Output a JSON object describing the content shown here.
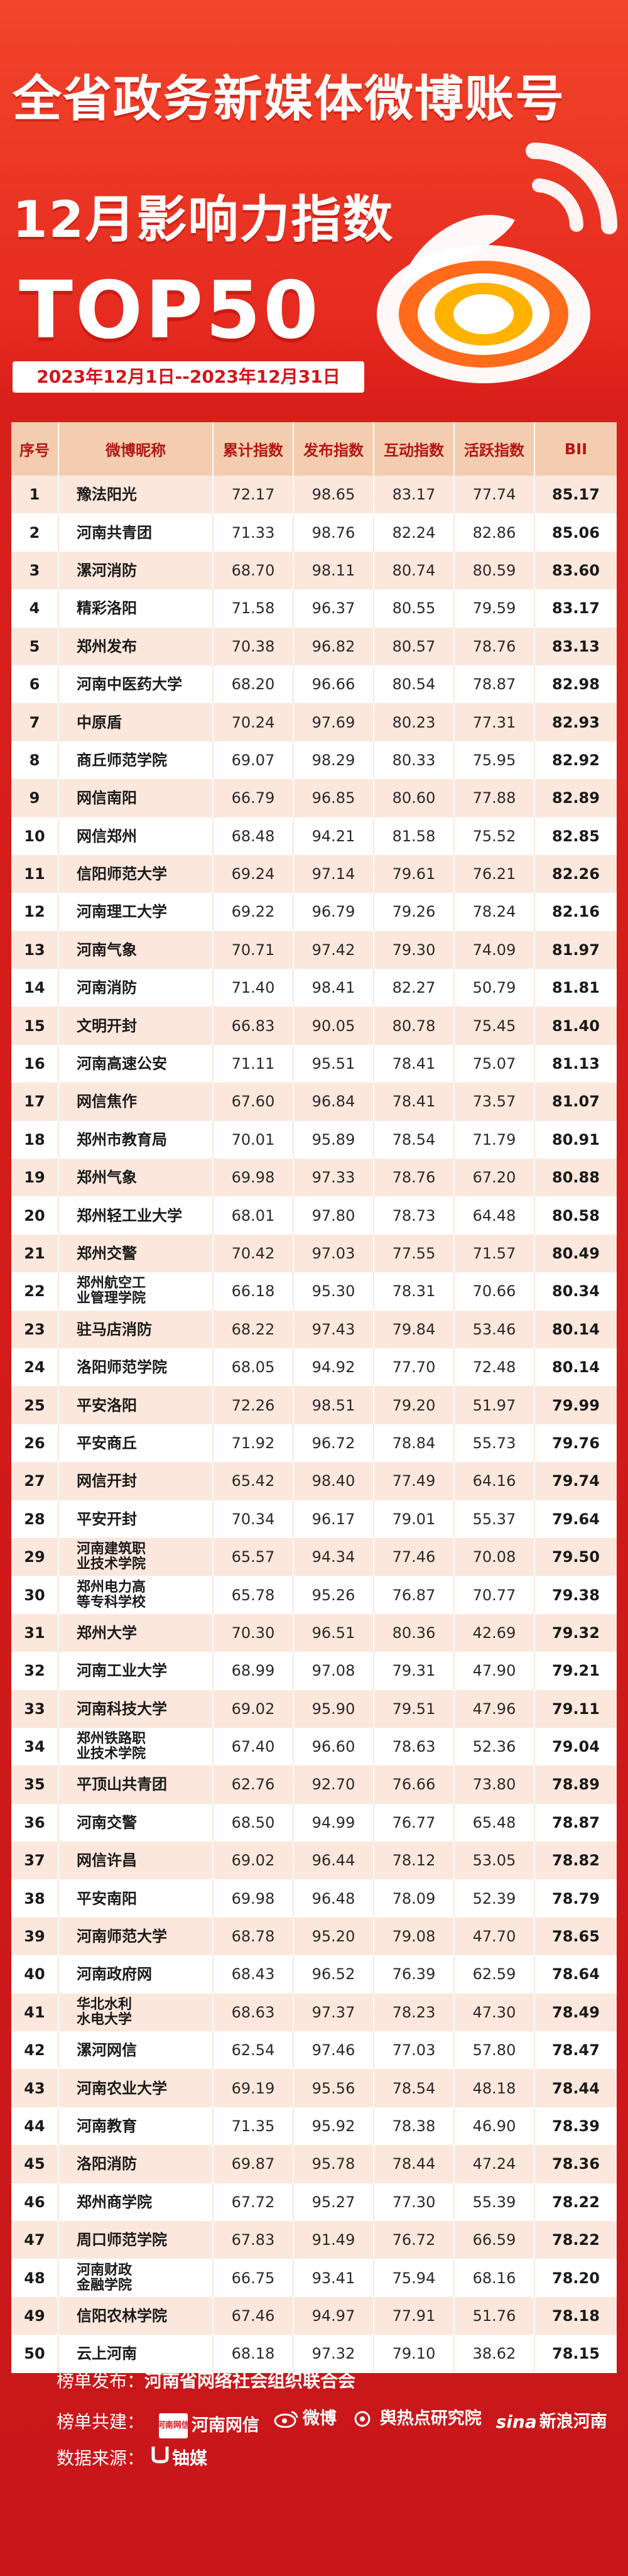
{
  "header": {
    "title_line1": "全省政务新媒体微博账号",
    "title_line2": "12月影响力指数",
    "title_line3": "TOP50",
    "date_range": "2023年12月1日--2023年12月31日"
  },
  "table": {
    "columns": [
      "序号",
      "微博昵称",
      "累计指数",
      "发布指数",
      "互动指数",
      "活跃指数",
      "BII"
    ],
    "rows": [
      [
        "1",
        "豫法阳光",
        "72.17",
        "98.65",
        "83.17",
        "77.74",
        "85.17"
      ],
      [
        "2",
        "河南共青团",
        "71.33",
        "98.76",
        "82.24",
        "82.86",
        "85.06"
      ],
      [
        "3",
        "漯河消防",
        "68.70",
        "98.11",
        "80.74",
        "80.59",
        "83.60"
      ],
      [
        "4",
        "精彩洛阳",
        "71.58",
        "96.37",
        "80.55",
        "79.59",
        "83.17"
      ],
      [
        "5",
        "郑州发布",
        "70.38",
        "96.82",
        "80.57",
        "78.76",
        "83.13"
      ],
      [
        "6",
        "河南中医药大学",
        "68.20",
        "96.66",
        "80.54",
        "78.87",
        "82.98"
      ],
      [
        "7",
        "中原盾",
        "70.24",
        "97.69",
        "80.23",
        "77.31",
        "82.93"
      ],
      [
        "8",
        "商丘师范学院",
        "69.07",
        "98.29",
        "80.33",
        "75.95",
        "82.92"
      ],
      [
        "9",
        "网信南阳",
        "66.79",
        "96.85",
        "80.60",
        "77.88",
        "82.89"
      ],
      [
        "10",
        "网信郑州",
        "68.48",
        "94.21",
        "81.58",
        "75.52",
        "82.85"
      ],
      [
        "11",
        "信阳师范大学",
        "69.24",
        "97.14",
        "79.61",
        "76.21",
        "82.26"
      ],
      [
        "12",
        "河南理工大学",
        "69.22",
        "96.79",
        "79.26",
        "78.24",
        "82.16"
      ],
      [
        "13",
        "河南气象",
        "70.71",
        "97.42",
        "79.30",
        "74.09",
        "81.97"
      ],
      [
        "14",
        "河南消防",
        "71.40",
        "98.41",
        "82.27",
        "50.79",
        "81.81"
      ],
      [
        "15",
        "文明开封",
        "66.83",
        "90.05",
        "80.78",
        "75.45",
        "81.40"
      ],
      [
        "16",
        "河南高速公安",
        "71.11",
        "95.51",
        "78.41",
        "75.07",
        "81.13"
      ],
      [
        "17",
        "网信焦作",
        "67.60",
        "96.84",
        "78.41",
        "73.57",
        "81.07"
      ],
      [
        "18",
        "郑州市教育局",
        "70.01",
        "95.89",
        "78.54",
        "71.79",
        "80.91"
      ],
      [
        "19",
        "郑州气象",
        "69.98",
        "97.33",
        "78.76",
        "67.20",
        "80.88"
      ],
      [
        "20",
        "郑州轻工业大学",
        "68.01",
        "97.80",
        "78.73",
        "64.48",
        "80.58"
      ],
      [
        "21",
        "郑州交警",
        "70.42",
        "97.03",
        "77.55",
        "71.57",
        "80.49"
      ],
      [
        "22",
        "郑州航空工业管理学院",
        "66.18",
        "95.30",
        "78.31",
        "70.66",
        "80.34"
      ],
      [
        "23",
        "驻马店消防",
        "68.22",
        "97.43",
        "79.84",
        "53.46",
        "80.14"
      ],
      [
        "24",
        "洛阳师范学院",
        "68.05",
        "94.92",
        "77.70",
        "72.48",
        "80.14"
      ],
      [
        "25",
        "平安洛阳",
        "72.26",
        "98.51",
        "79.20",
        "51.97",
        "79.99"
      ],
      [
        "26",
        "平安商丘",
        "71.92",
        "96.72",
        "78.84",
        "55.73",
        "79.76"
      ],
      [
        "27",
        "网信开封",
        "65.42",
        "98.40",
        "77.49",
        "64.16",
        "79.74"
      ],
      [
        "28",
        "平安开封",
        "70.34",
        "96.17",
        "79.01",
        "55.37",
        "79.64"
      ],
      [
        "29",
        "河南建筑职业技术学院",
        "65.57",
        "94.34",
        "77.46",
        "70.08",
        "79.50"
      ],
      [
        "30",
        "郑州电力高等专科学校",
        "65.78",
        "95.26",
        "76.87",
        "70.77",
        "79.38"
      ],
      [
        "31",
        "郑州大学",
        "70.30",
        "96.51",
        "80.36",
        "42.69",
        "79.32"
      ],
      [
        "32",
        "河南工业大学",
        "68.99",
        "97.08",
        "79.31",
        "47.90",
        "79.21"
      ],
      [
        "33",
        "河南科技大学",
        "69.02",
        "95.90",
        "79.51",
        "47.96",
        "79.11"
      ],
      [
        "34",
        "郑州铁路职业技术学院",
        "67.40",
        "96.60",
        "78.63",
        "52.36",
        "79.04"
      ],
      [
        "35",
        "平顶山共青团",
        "62.76",
        "92.70",
        "76.66",
        "73.80",
        "78.89"
      ],
      [
        "36",
        "河南交警",
        "68.50",
        "94.99",
        "76.77",
        "65.48",
        "78.87"
      ],
      [
        "37",
        "网信许昌",
        "69.02",
        "96.44",
        "78.12",
        "53.05",
        "78.82"
      ],
      [
        "38",
        "平安南阳",
        "69.98",
        "96.48",
        "78.09",
        "52.39",
        "78.79"
      ],
      [
        "39",
        "河南师范大学",
        "68.78",
        "95.20",
        "79.08",
        "47.70",
        "78.65"
      ],
      [
        "40",
        "河南政府网",
        "68.43",
        "96.52",
        "76.39",
        "62.59",
        "78.64"
      ],
      [
        "41",
        "华北水利水电大学",
        "68.63",
        "97.37",
        "78.23",
        "47.30",
        "78.49"
      ],
      [
        "42",
        "漯河网信",
        "62.54",
        "97.46",
        "77.03",
        "57.80",
        "78.47"
      ],
      [
        "43",
        "河南农业大学",
        "69.19",
        "95.56",
        "78.54",
        "48.18",
        "78.44"
      ],
      [
        "44",
        "河南教育",
        "71.35",
        "95.92",
        "78.38",
        "46.90",
        "78.39"
      ],
      [
        "45",
        "洛阳消防",
        "69.87",
        "95.78",
        "78.44",
        "47.24",
        "78.36"
      ],
      [
        "46",
        "郑州商学院",
        "67.72",
        "95.27",
        "77.30",
        "55.39",
        "78.22"
      ],
      [
        "47",
        "周口师范学院",
        "67.83",
        "91.49",
        "76.72",
        "66.59",
        "78.22"
      ],
      [
        "48",
        "河南财政金融学院",
        "66.75",
        "93.41",
        "75.94",
        "68.16",
        "78.20"
      ],
      [
        "49",
        "信阳农林学院",
        "67.46",
        "94.97",
        "77.91",
        "51.76",
        "78.18"
      ],
      [
        "50",
        "云上河南",
        "68.18",
        "97.32",
        "79.10",
        "38.62",
        "78.15"
      ]
    ]
  },
  "footer": {
    "publisher_label": "榜单发布：",
    "publisher_value": "河南省网络社会组织联合会",
    "co_label": "榜单共建：",
    "sponsors": {
      "henan_badge": "河南网信",
      "henan_name": "河南网信",
      "weibo": "微博",
      "hotspot": "舆热点研究院",
      "sina_mark": "sina",
      "sina_name": "新浪河南"
    },
    "source_label": "数据来源：",
    "source_value": "铀媒"
  }
}
